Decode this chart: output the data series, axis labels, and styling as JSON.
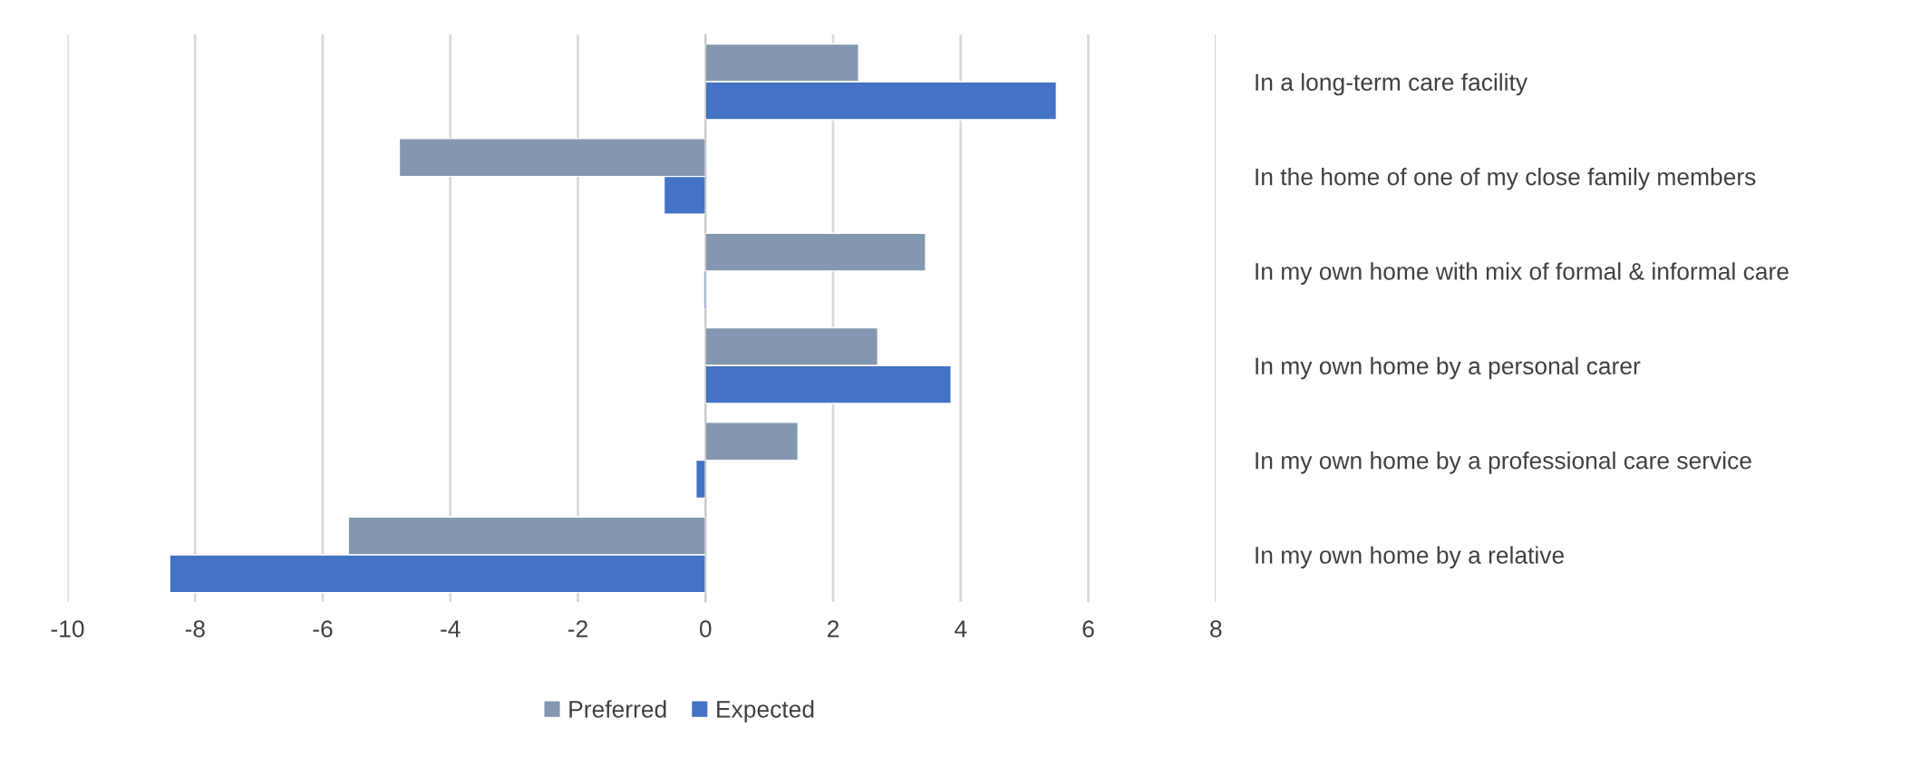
{
  "chart_data": {
    "type": "bar",
    "orientation": "horizontal",
    "categories": [
      "In a long-term care facility",
      "In the home of one of my close family members",
      "In my own home with mix of formal & informal care",
      "In my own home by a personal carer",
      "In my own home by a professional care service",
      "In my own home by a relative"
    ],
    "series": [
      {
        "name": "Preferred",
        "color": "#8497b0",
        "values": [
          2.4,
          -4.8,
          3.45,
          2.7,
          1.45,
          -5.6
        ]
      },
      {
        "name": "Expected",
        "color": "#4472c4",
        "values": [
          5.5,
          -0.65,
          -0.03,
          3.85,
          -0.15,
          -8.4
        ]
      }
    ],
    "xlim": [
      -10,
      8
    ],
    "xticks": [
      -10,
      -8,
      -6,
      -4,
      -2,
      0,
      2,
      4,
      6,
      8
    ],
    "grid": "x",
    "legend": "bottom"
  }
}
